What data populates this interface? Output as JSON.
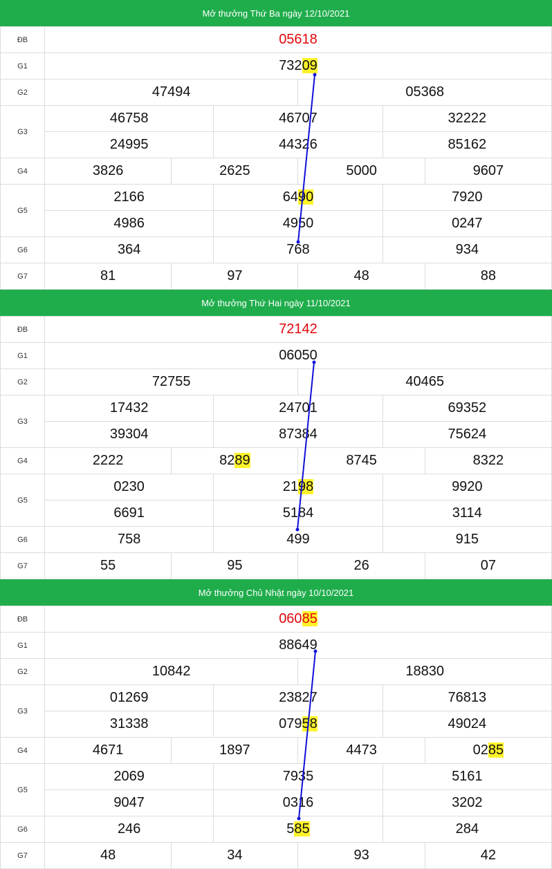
{
  "draws": [
    {
      "title": "Mở thưởng Thứ Ba ngày 12/10/2021",
      "db": [
        {
          "pre": "05618",
          "hl": ""
        }
      ],
      "g1": [
        {
          "pre": "732",
          "hl": "09"
        }
      ],
      "g2": [
        {
          "pre": "47494",
          "hl": ""
        },
        {
          "pre": "05368",
          "hl": ""
        }
      ],
      "g3a": [
        {
          "pre": "46758",
          "hl": ""
        },
        {
          "pre": "46707",
          "hl": ""
        },
        {
          "pre": "32222",
          "hl": ""
        }
      ],
      "g3b": [
        {
          "pre": "24995",
          "hl": ""
        },
        {
          "pre": "44326",
          "hl": ""
        },
        {
          "pre": "85162",
          "hl": ""
        }
      ],
      "g4": [
        {
          "pre": "3826",
          "hl": ""
        },
        {
          "pre": "2625",
          "hl": ""
        },
        {
          "pre": "5000",
          "hl": ""
        },
        {
          "pre": "9607",
          "hl": ""
        }
      ],
      "g5a": [
        {
          "pre": "2166",
          "hl": ""
        },
        {
          "pre": "64",
          "hl": "90"
        },
        {
          "pre": "7920",
          "hl": ""
        }
      ],
      "g5b": [
        {
          "pre": "4986",
          "hl": ""
        },
        {
          "pre": "4950",
          "hl": ""
        },
        {
          "pre": "0247",
          "hl": ""
        }
      ],
      "g6": [
        {
          "pre": "364",
          "hl": ""
        },
        {
          "pre": "768",
          "hl": ""
        },
        {
          "pre": "934",
          "hl": ""
        }
      ],
      "g7": [
        {
          "pre": "81",
          "hl": ""
        },
        {
          "pre": "97",
          "hl": ""
        },
        {
          "pre": "48",
          "hl": ""
        },
        {
          "pre": "88",
          "hl": ""
        }
      ]
    },
    {
      "title": "Mở thưởng Thứ Hai ngày 11/10/2021",
      "db": [
        {
          "pre": "72142",
          "hl": ""
        }
      ],
      "g1": [
        {
          "pre": "06050",
          "hl": ""
        }
      ],
      "g2": [
        {
          "pre": "72755",
          "hl": ""
        },
        {
          "pre": "40465",
          "hl": ""
        }
      ],
      "g3a": [
        {
          "pre": "17432",
          "hl": ""
        },
        {
          "pre": "24701",
          "hl": ""
        },
        {
          "pre": "69352",
          "hl": ""
        }
      ],
      "g3b": [
        {
          "pre": "39304",
          "hl": ""
        },
        {
          "pre": "87384",
          "hl": ""
        },
        {
          "pre": "75624",
          "hl": ""
        }
      ],
      "g4": [
        {
          "pre": "2222",
          "hl": ""
        },
        {
          "pre": "82",
          "hl": "89"
        },
        {
          "pre": "8745",
          "hl": ""
        },
        {
          "pre": "8322",
          "hl": ""
        }
      ],
      "g5a": [
        {
          "pre": "0230",
          "hl": ""
        },
        {
          "pre": "21",
          "hl": "98"
        },
        {
          "pre": "9920",
          "hl": ""
        }
      ],
      "g5b": [
        {
          "pre": "6691",
          "hl": ""
        },
        {
          "pre": "5184",
          "hl": ""
        },
        {
          "pre": "3114",
          "hl": ""
        }
      ],
      "g6": [
        {
          "pre": "758",
          "hl": ""
        },
        {
          "pre": "499",
          "hl": ""
        },
        {
          "pre": "915",
          "hl": ""
        }
      ],
      "g7": [
        {
          "pre": "55",
          "hl": ""
        },
        {
          "pre": "95",
          "hl": ""
        },
        {
          "pre": "26",
          "hl": ""
        },
        {
          "pre": "07",
          "hl": ""
        }
      ]
    },
    {
      "title": "Mở thưởng Chủ Nhật ngày 10/10/2021",
      "db": [
        {
          "pre": "060",
          "hl": "85"
        }
      ],
      "g1": [
        {
          "pre": "88649",
          "hl": ""
        }
      ],
      "g2": [
        {
          "pre": "10842",
          "hl": ""
        },
        {
          "pre": "18830",
          "hl": ""
        }
      ],
      "g3a": [
        {
          "pre": "01269",
          "hl": ""
        },
        {
          "pre": "23827",
          "hl": ""
        },
        {
          "pre": "76813",
          "hl": ""
        }
      ],
      "g3b": [
        {
          "pre": "31338",
          "hl": ""
        },
        {
          "pre": "079",
          "hl": "58"
        },
        {
          "pre": "49024",
          "hl": ""
        }
      ],
      "g4": [
        {
          "pre": "4671",
          "hl": ""
        },
        {
          "pre": "1897",
          "hl": ""
        },
        {
          "pre": "4473",
          "hl": ""
        },
        {
          "pre": "02",
          "hl": "85"
        }
      ],
      "g5a": [
        {
          "pre": "2069",
          "hl": ""
        },
        {
          "pre": "7935",
          "hl": ""
        },
        {
          "pre": "5161",
          "hl": ""
        }
      ],
      "g5b": [
        {
          "pre": "9047",
          "hl": ""
        },
        {
          "pre": "0316",
          "hl": ""
        },
        {
          "pre": "3202",
          "hl": ""
        }
      ],
      "g6": [
        {
          "pre": "246",
          "hl": ""
        },
        {
          "pre": "5",
          "hl": "85"
        },
        {
          "pre": "284",
          "hl": ""
        }
      ],
      "g7": [
        {
          "pre": "48",
          "hl": ""
        },
        {
          "pre": "34",
          "hl": ""
        },
        {
          "pre": "93",
          "hl": ""
        },
        {
          "pre": "42",
          "hl": ""
        }
      ]
    }
  ],
  "labels": {
    "db": "ĐB",
    "g1": "G1",
    "g2": "G2",
    "g3": "G3",
    "g4": "G4",
    "g5": "G5",
    "g6": "G6",
    "g7": "G7"
  },
  "colors": {
    "header": "#1fad4c",
    "special": "#e0060a",
    "highlight": "#fdf32a",
    "line": "#1010d8"
  }
}
